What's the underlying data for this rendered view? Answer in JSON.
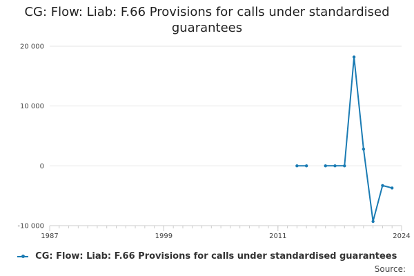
{
  "title": "CG: Flow: Liab: F.66 Provisions for calls under standardised guarantees",
  "title_lines": [
    "CG: Flow: Liab: F.66 Provisions for calls under standardised",
    "guarantees"
  ],
  "source_label": "Source:",
  "colors": {
    "series": "#1a7bb3",
    "grid": "#e6e6e6",
    "axis": "#cccccc"
  },
  "chart_data": {
    "type": "line",
    "title": "CG: Flow: Liab: F.66 Provisions for calls under standardised guarantees",
    "xlabel": "",
    "ylabel": "",
    "xlim": [
      1987,
      2024
    ],
    "ylim": [
      -10000,
      20000
    ],
    "x_ticks": [
      1987,
      1999,
      2011,
      2024
    ],
    "x_tick_labels": [
      "1987",
      "1999",
      "2011",
      "2024"
    ],
    "y_ticks": [
      -10000,
      0,
      10000,
      20000
    ],
    "y_tick_labels": [
      "-10 000",
      "0",
      "10 000",
      "20 000"
    ],
    "grid": true,
    "legend_position": "bottom",
    "series": [
      {
        "name": "CG: Flow: Liab: F.66 Provisions for calls under standardised guarantees",
        "x": [
          2011,
          2012,
          2013,
          2014,
          2015,
          2016,
          2017,
          2018,
          2019,
          2020,
          2021,
          2022,
          2023,
          2024
        ],
        "y": [
          null,
          null,
          0,
          0,
          null,
          0,
          0,
          0,
          18200,
          2800,
          -9300,
          -3300,
          -3700,
          null
        ]
      }
    ]
  }
}
